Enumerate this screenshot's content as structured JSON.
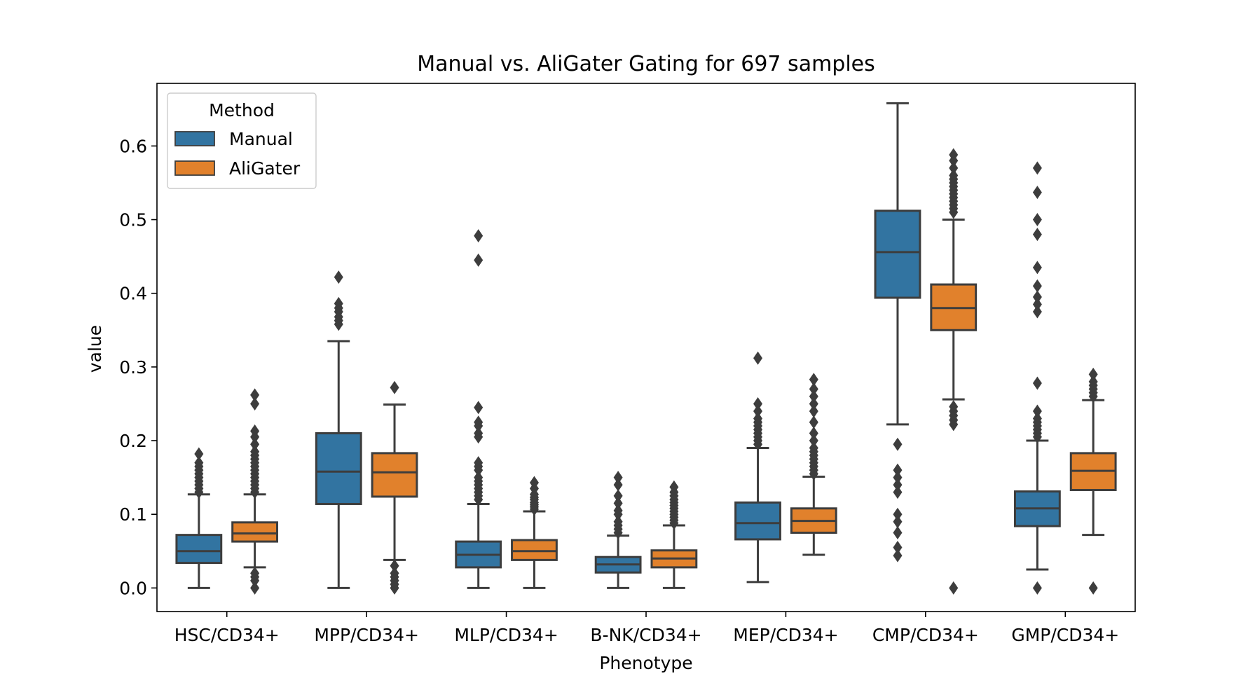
{
  "chart_data": {
    "type": "box",
    "title": "Manual vs. AliGater Gating for 697 samples",
    "xlabel": "Phenotype",
    "ylabel": "value",
    "ylim": [
      -0.032,
      0.685
    ],
    "yticks": [
      0.0,
      0.1,
      0.2,
      0.3,
      0.4,
      0.5,
      0.6
    ],
    "ytick_labels": [
      "0.0",
      "0.1",
      "0.2",
      "0.3",
      "0.4",
      "0.5",
      "0.6"
    ],
    "categories": [
      "HSC/CD34+",
      "MPP/CD34+",
      "MLP/CD34+",
      "B-NK/CD34+",
      "MEP/CD34+",
      "CMP/CD34+",
      "GMP/CD34+"
    ],
    "legend": {
      "title": "Method",
      "position": "top-left"
    },
    "series": [
      {
        "name": "Manual",
        "color": "#3274a1",
        "boxes": [
          {
            "whislo": 0.0,
            "q1": 0.034,
            "med": 0.05,
            "q3": 0.072,
            "whishi": 0.127,
            "fliers": [
              0.13,
              0.135,
              0.14,
              0.145,
              0.15,
              0.155,
              0.16,
              0.165,
              0.17,
              0.182
            ]
          },
          {
            "whislo": 0.0,
            "q1": 0.114,
            "med": 0.158,
            "q3": 0.21,
            "whishi": 0.335,
            "fliers": [
              0.358,
              0.363,
              0.368,
              0.375,
              0.38,
              0.386,
              0.422
            ]
          },
          {
            "whislo": 0.0,
            "q1": 0.028,
            "med": 0.045,
            "q3": 0.063,
            "whishi": 0.114,
            "fliers": [
              0.12,
              0.125,
              0.13,
              0.135,
              0.14,
              0.145,
              0.15,
              0.16,
              0.165,
              0.17,
              0.205,
              0.21,
              0.22,
              0.225,
              0.245,
              0.445,
              0.478
            ]
          },
          {
            "whislo": 0.0,
            "q1": 0.021,
            "med": 0.032,
            "q3": 0.042,
            "whishi": 0.071,
            "fliers": [
              0.075,
              0.08,
              0.085,
              0.09,
              0.1,
              0.105,
              0.115,
              0.125,
              0.14,
              0.15
            ]
          },
          {
            "whislo": 0.008,
            "q1": 0.066,
            "med": 0.088,
            "q3": 0.116,
            "whishi": 0.19,
            "fliers": [
              0.195,
              0.2,
              0.205,
              0.21,
              0.215,
              0.22,
              0.225,
              0.23,
              0.24,
              0.25,
              0.312
            ]
          },
          {
            "whislo": 0.222,
            "q1": 0.394,
            "med": 0.456,
            "q3": 0.512,
            "whishi": 0.658,
            "fliers": [
              0.044,
              0.055,
              0.075,
              0.09,
              0.1,
              0.13,
              0.14,
              0.15,
              0.16,
              0.195
            ]
          },
          {
            "whislo": 0.025,
            "q1": 0.084,
            "med": 0.108,
            "q3": 0.131,
            "whishi": 0.2,
            "fliers": [
              0.0,
              0.205,
              0.21,
              0.215,
              0.22,
              0.225,
              0.23,
              0.24,
              0.278,
              0.375,
              0.385,
              0.395,
              0.41,
              0.435,
              0.48,
              0.5,
              0.537,
              0.57
            ]
          }
        ]
      },
      {
        "name": "AliGater",
        "color": "#e1812c",
        "boxes": [
          {
            "whislo": 0.028,
            "q1": 0.063,
            "med": 0.074,
            "q3": 0.089,
            "whishi": 0.127,
            "fliers": [
              0.0,
              0.01,
              0.015,
              0.02,
              0.13,
              0.135,
              0.14,
              0.145,
              0.15,
              0.155,
              0.16,
              0.165,
              0.17,
              0.175,
              0.18,
              0.185,
              0.195,
              0.205,
              0.213,
              0.25,
              0.262
            ]
          },
          {
            "whislo": 0.038,
            "q1": 0.124,
            "med": 0.157,
            "q3": 0.183,
            "whishi": 0.249,
            "fliers": [
              0.0,
              0.005,
              0.01,
              0.015,
              0.02,
              0.03,
              0.272
            ]
          },
          {
            "whislo": 0.0,
            "q1": 0.038,
            "med": 0.05,
            "q3": 0.065,
            "whishi": 0.104,
            "fliers": [
              0.107,
              0.11,
              0.113,
              0.116,
              0.12,
              0.123,
              0.127,
              0.135,
              0.143
            ]
          },
          {
            "whislo": 0.0,
            "q1": 0.028,
            "med": 0.04,
            "q3": 0.051,
            "whishi": 0.085,
            "fliers": [
              0.088,
              0.092,
              0.096,
              0.1,
              0.104,
              0.108,
              0.112,
              0.116,
              0.12,
              0.125,
              0.13,
              0.137
            ]
          },
          {
            "whislo": 0.045,
            "q1": 0.075,
            "med": 0.091,
            "q3": 0.108,
            "whishi": 0.151,
            "fliers": [
              0.155,
              0.16,
              0.165,
              0.17,
              0.175,
              0.18,
              0.185,
              0.19,
              0.2,
              0.21,
              0.225,
              0.24,
              0.25,
              0.26,
              0.27,
              0.283
            ]
          },
          {
            "whislo": 0.256,
            "q1": 0.35,
            "med": 0.38,
            "q3": 0.412,
            "whishi": 0.5,
            "fliers": [
              0.0,
              0.222,
              0.228,
              0.234,
              0.24,
              0.246,
              0.51,
              0.515,
              0.52,
              0.525,
              0.53,
              0.535,
              0.54,
              0.545,
              0.55,
              0.555,
              0.56,
              0.57,
              0.58,
              0.588
            ]
          },
          {
            "whislo": 0.072,
            "q1": 0.133,
            "med": 0.159,
            "q3": 0.183,
            "whishi": 0.255,
            "fliers": [
              0.0,
              0.26,
              0.265,
              0.27,
              0.275,
              0.28,
              0.29
            ]
          }
        ]
      }
    ]
  }
}
